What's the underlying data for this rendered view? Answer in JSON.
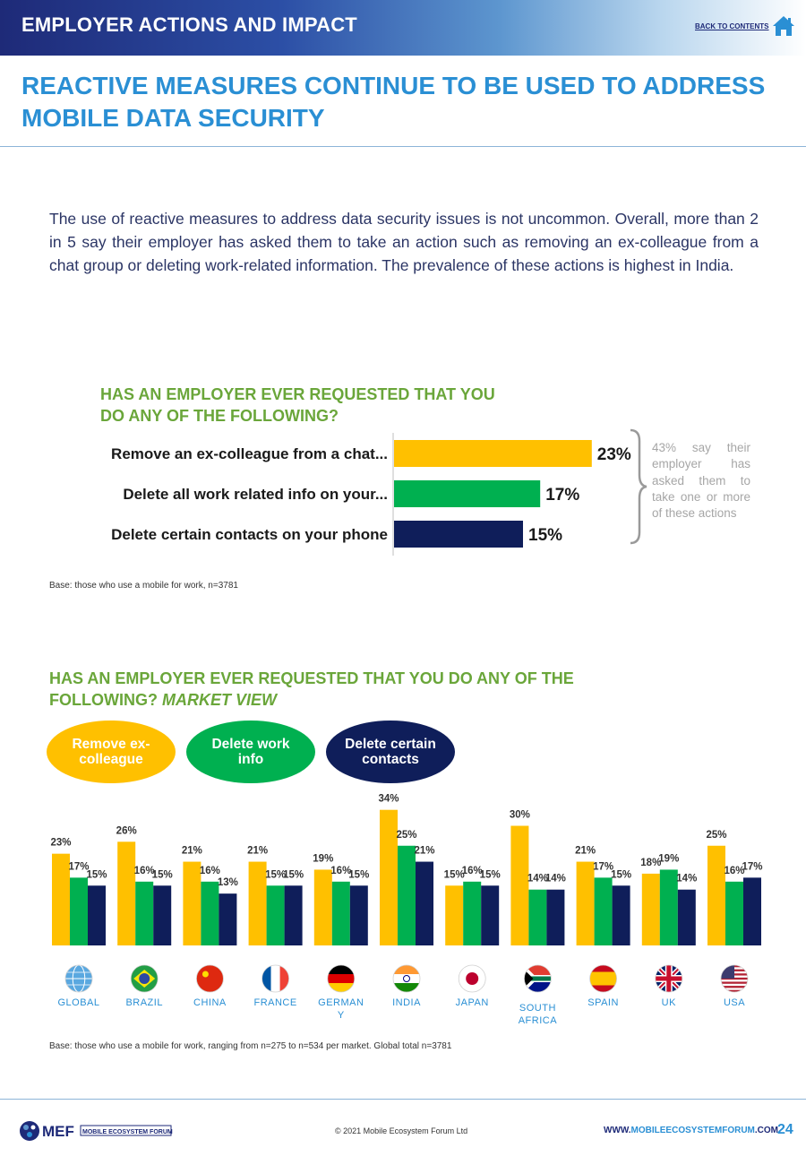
{
  "header": {
    "section_title": "EMPLOYER ACTIONS AND IMPACT",
    "back_link": "BACK TO CONTENTS",
    "home_icon": "home-icon"
  },
  "page_title": "REACTIVE MEASURES CONTINUE TO BE USED TO ADDRESS MOBILE DATA SECURITY",
  "intro_text": "The use of reactive measures to address data security issues is not uncommon. Overall, more than 2 in 5 say their employer has asked them to take an action such as removing an ex-colleague from a chat group or deleting work-related information. The prevalence of these actions is highest in India.",
  "side_note": "43% say their employer has asked them to take one or more of these actions",
  "base_note_1": "Base: those who use a mobile for work, n=3781",
  "base_note_2": "Base: those who use a mobile for work, ranging from n=275 to n=534 per market. Global total n=3781",
  "chart2_title_main": "HAS AN EMPLOYER EVER REQUESTED THAT YOU DO ANY OF THE FOLLOWING?",
  "chart2_title_em": "MARKET VIEW",
  "colors": {
    "yellow": "#ffc000",
    "green": "#00b050",
    "navy": "#0f1e5a",
    "accent": "#2a8fd4",
    "title_green": "#6aa63a"
  },
  "chart_data": [
    {
      "type": "bar",
      "orientation": "horizontal",
      "title": "HAS AN EMPLOYER EVER REQUESTED THAT YOU DO ANY OF THE FOLLOWING?",
      "categories": [
        "Remove an ex-colleague from a chat...",
        "Delete all work related info on your...",
        "Delete certain contacts on your phone"
      ],
      "values": [
        23,
        17,
        15
      ],
      "value_labels": [
        "23%",
        "17%",
        "15%"
      ],
      "colors": [
        "#ffc000",
        "#00b050",
        "#0f1e5a"
      ],
      "xlim": [
        0,
        30
      ]
    },
    {
      "type": "bar",
      "orientation": "vertical",
      "title": "HAS AN EMPLOYER EVER REQUESTED THAT YOU DO ANY OF THE FOLLOWING? MARKET VIEW",
      "categories": [
        "GLOBAL",
        "BRAZIL",
        "CHINA",
        "FRANCE",
        "GERMANY",
        "INDIA",
        "JAPAN",
        "SOUTH AFRICA",
        "SPAIN",
        "UK",
        "USA"
      ],
      "category_lines": [
        [
          "GLOBAL"
        ],
        [
          "BRAZIL"
        ],
        [
          "CHINA"
        ],
        [
          "FRANCE"
        ],
        [
          "GERMAN",
          "Y"
        ],
        [
          "INDIA"
        ],
        [
          "JAPAN"
        ],
        [
          "SOUTH",
          "AFRICA"
        ],
        [
          "SPAIN"
        ],
        [
          "UK"
        ],
        [
          "USA"
        ]
      ],
      "category_icons": [
        "globe-icon",
        "brazil-flag-icon",
        "china-flag-icon",
        "france-flag-icon",
        "germany-flag-icon",
        "india-flag-icon",
        "japan-flag-icon",
        "south-africa-flag-icon",
        "spain-flag-icon",
        "uk-flag-icon",
        "usa-flag-icon"
      ],
      "series": [
        {
          "name": "Remove ex-colleague",
          "color": "#ffc000",
          "values": [
            23,
            26,
            21,
            21,
            19,
            34,
            15,
            30,
            21,
            18,
            25
          ]
        },
        {
          "name": "Delete work info",
          "color": "#00b050",
          "values": [
            17,
            16,
            16,
            15,
            16,
            25,
            16,
            14,
            17,
            19,
            16
          ]
        },
        {
          "name": "Delete certain contacts",
          "color": "#0f1e5a",
          "values": [
            15,
            15,
            13,
            15,
            15,
            21,
            15,
            14,
            15,
            14,
            17
          ]
        }
      ],
      "legend": "top-left",
      "ylim": [
        0,
        35
      ]
    }
  ],
  "footer": {
    "logo_text": "MEF",
    "logo_subtext": "MOBILE ECOSYSTEM FORUM",
    "copyright": "© 2021 Mobile Ecosystem Forum Ltd",
    "url_pre": "WWW.",
    "url_hl": "MOBILEECOSYSTEMFORUM",
    "url_post": ".COM",
    "page_number": "24"
  }
}
